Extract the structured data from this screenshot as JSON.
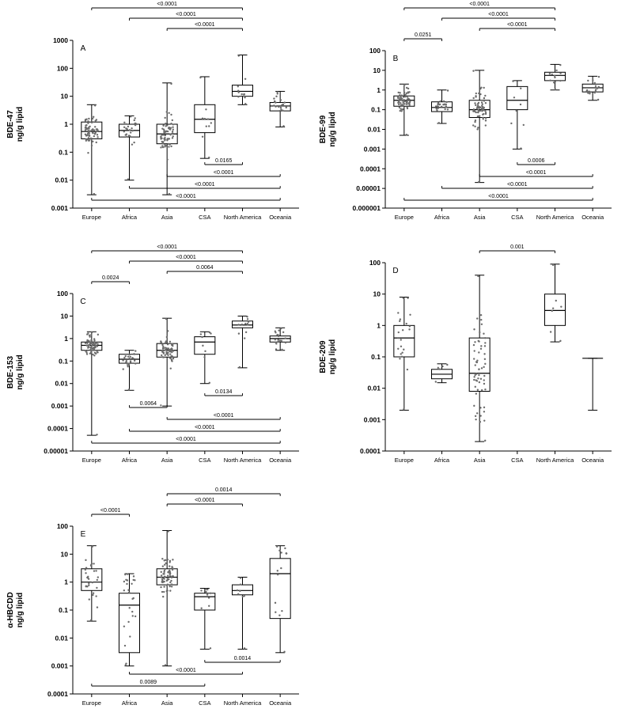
{
  "figure": {
    "background": "#ffffff",
    "line_color": "#000000",
    "point_color": "#6b6b6b"
  },
  "chart_data": [
    {
      "type": "box",
      "panel_label": "A",
      "ylabel_line1": "BDE-47",
      "ylabel_line2": "ng/g lipid",
      "log_range": [
        3,
        -3
      ],
      "yticks": [
        "1000",
        "100",
        "10",
        "1",
        "0.1",
        "0.01",
        "0.001"
      ],
      "categories": [
        "Europe",
        "Africa",
        "Asia",
        "CSA",
        "North America",
        "Oceania"
      ],
      "boxes": [
        {
          "min": 0.003,
          "q1": 0.3,
          "median": 0.55,
          "q3": 1.2,
          "max": 5,
          "n": 70
        },
        {
          "min": 0.01,
          "q1": 0.35,
          "median": 0.6,
          "q3": 1.0,
          "max": 2,
          "n": 25
        },
        {
          "min": 0.003,
          "q1": 0.2,
          "median": 0.45,
          "q3": 1.0,
          "max": 30,
          "n": 70
        },
        {
          "min": 0.06,
          "q1": 0.5,
          "median": 1.5,
          "q3": 5,
          "max": 50,
          "n": 10
        },
        {
          "min": 5,
          "q1": 10,
          "median": 15,
          "q3": 25,
          "max": 300,
          "n": 12
        },
        {
          "min": 0.8,
          "q1": 3,
          "median": 4.5,
          "q3": 6,
          "max": 15,
          "n": 20
        }
      ],
      "top_annotations": [
        {
          "label": "<0.0001",
          "from": 0,
          "to": 4
        },
        {
          "label": "<0.0001",
          "from": 1,
          "to": 4
        },
        {
          "label": "<0.0001",
          "from": 2,
          "to": 4
        }
      ],
      "bottom_annotations": [
        {
          "label": "<0.0001",
          "from": 0,
          "to": 5
        },
        {
          "label": "<0.0001",
          "from": 1,
          "to": 5
        },
        {
          "label": "<0.0001",
          "from": 2,
          "to": 5
        },
        {
          "label": "0.0165",
          "from": 3,
          "to": 4
        }
      ]
    },
    {
      "type": "box",
      "panel_label": "B",
      "ylabel_line1": "BDE-99",
      "ylabel_line2": "ng/g lipid",
      "log_range": [
        2,
        -6
      ],
      "yticks": [
        "100",
        "10",
        "1",
        "0.1",
        "0.01",
        "0.001",
        "0.0001",
        "0.00001",
        "0.000001"
      ],
      "categories": [
        "Europe",
        "Africa",
        "Asia",
        "CSA",
        "North America",
        "Oceania"
      ],
      "boxes": [
        {
          "min": 0.005,
          "q1": 0.15,
          "median": 0.3,
          "q3": 0.5,
          "max": 2,
          "n": 70
        },
        {
          "min": 0.02,
          "q1": 0.08,
          "median": 0.13,
          "q3": 0.25,
          "max": 1,
          "n": 25
        },
        {
          "min": 2e-05,
          "q1": 0.04,
          "median": 0.1,
          "q3": 0.3,
          "max": 10,
          "n": 70
        },
        {
          "min": 0.001,
          "q1": 0.1,
          "median": 0.3,
          "q3": 1.5,
          "max": 3,
          "n": 8
        },
        {
          "min": 1,
          "q1": 3,
          "median": 5.5,
          "q3": 8,
          "max": 20,
          "n": 12
        },
        {
          "min": 0.3,
          "q1": 0.8,
          "median": 1.3,
          "q3": 2,
          "max": 5,
          "n": 20
        }
      ],
      "top_annotations": [
        {
          "label": "<0.0001",
          "from": 0,
          "to": 4
        },
        {
          "label": "<0.0001",
          "from": 1,
          "to": 4
        },
        {
          "label": "<0.0001",
          "from": 2,
          "to": 4
        },
        {
          "label": "0.0251",
          "from": 0,
          "to": 1
        }
      ],
      "bottom_annotations": [
        {
          "label": "<0.0001",
          "from": 0,
          "to": 5
        },
        {
          "label": "<0.0001",
          "from": 1,
          "to": 5
        },
        {
          "label": "<0.0001",
          "from": 2,
          "to": 5
        },
        {
          "label": "0.0006",
          "from": 3,
          "to": 4
        }
      ]
    },
    {
      "type": "box",
      "panel_label": "C",
      "ylabel_line1": "BDE-153",
      "ylabel_line2": "ng/g lipid",
      "log_range": [
        2,
        -5
      ],
      "yticks": [
        "100",
        "10",
        "1",
        "0.1",
        "0.01",
        "0.001",
        "0.0001",
        "0.00001"
      ],
      "categories": [
        "Europe",
        "Africa",
        "Asia",
        "CSA",
        "North America",
        "Oceania"
      ],
      "boxes": [
        {
          "min": 5e-05,
          "q1": 0.3,
          "median": 0.5,
          "q3": 0.7,
          "max": 2,
          "n": 70
        },
        {
          "min": 0.005,
          "q1": 0.08,
          "median": 0.12,
          "q3": 0.2,
          "max": 0.3,
          "n": 25
        },
        {
          "min": 0.001,
          "q1": 0.15,
          "median": 0.3,
          "q3": 0.6,
          "max": 8,
          "n": 70
        },
        {
          "min": 0.01,
          "q1": 0.2,
          "median": 0.7,
          "q3": 1.2,
          "max": 2,
          "n": 8
        },
        {
          "min": 0.05,
          "q1": 3,
          "median": 4,
          "q3": 6,
          "max": 10,
          "n": 12
        },
        {
          "min": 0.3,
          "q1": 0.7,
          "median": 1.0,
          "q3": 1.3,
          "max": 3,
          "n": 20
        }
      ],
      "top_annotations": [
        {
          "label": "<0.0001",
          "from": 0,
          "to": 4
        },
        {
          "label": "<0.0001",
          "from": 1,
          "to": 4
        },
        {
          "label": "0.0064",
          "from": 2,
          "to": 4
        },
        {
          "label": "0.0024",
          "from": 0,
          "to": 1
        }
      ],
      "bottom_annotations": [
        {
          "label": "<0.0001",
          "from": 0,
          "to": 5
        },
        {
          "label": "<0.0001",
          "from": 1,
          "to": 5
        },
        {
          "label": "<0.0001",
          "from": 2,
          "to": 5
        },
        {
          "label": "0.0064",
          "from": 1,
          "to": 2
        },
        {
          "label": "0.0134",
          "from": 3,
          "to": 4
        }
      ]
    },
    {
      "type": "box",
      "panel_label": "D",
      "ylabel_line1": "BDE-209",
      "ylabel_line2": "ng/g lipid",
      "log_range": [
        2,
        -4
      ],
      "yticks": [
        "100",
        "10",
        "1",
        "0.1",
        "0.01",
        "0.001",
        "0.0001"
      ],
      "categories": [
        "Europe",
        "Africa",
        "Asia",
        "CSA",
        "North America",
        "Oceania"
      ],
      "boxes": [
        {
          "min": 0.002,
          "q1": 0.1,
          "median": 0.4,
          "q3": 1.0,
          "max": 8,
          "n": 22
        },
        {
          "min": 0.015,
          "q1": 0.02,
          "median": 0.028,
          "q3": 0.04,
          "max": 0.06,
          "n": 5
        },
        {
          "min": 0.0002,
          "q1": 0.008,
          "median": 0.03,
          "q3": 0.4,
          "max": 40,
          "n": 60
        },
        null,
        {
          "min": 0.3,
          "q1": 1,
          "median": 3,
          "q3": 10,
          "max": 90,
          "n": 7
        },
        {
          "min": 0.002,
          "q1": 0.09,
          "median": 0.09,
          "q3": 0.09,
          "max": 0.09,
          "n": 0
        }
      ],
      "top_annotations": [
        {
          "label": "0.001",
          "from": 2,
          "to": 4
        }
      ],
      "bottom_annotations": []
    },
    {
      "type": "box",
      "panel_label": "E",
      "ylabel_line1": "α-HBCDD",
      "ylabel_line2": "ng/g lipid",
      "log_range": [
        2,
        -4
      ],
      "yticks": [
        "100",
        "10",
        "1",
        "0.1",
        "0.01",
        "0.001",
        "0.0001"
      ],
      "categories": [
        "Europe",
        "Africa",
        "Asia",
        "CSA",
        "North America",
        "Oceania"
      ],
      "boxes": [
        {
          "min": 0.04,
          "q1": 0.5,
          "median": 1,
          "q3": 3,
          "max": 20,
          "n": 30
        },
        {
          "min": 0.001,
          "q1": 0.003,
          "median": 0.15,
          "q3": 0.4,
          "max": 2,
          "n": 25
        },
        {
          "min": 0.001,
          "q1": 0.8,
          "median": 1.5,
          "q3": 3,
          "max": 70,
          "n": 70
        },
        {
          "min": 0.004,
          "q1": 0.1,
          "median": 0.3,
          "q3": 0.4,
          "max": 0.6,
          "n": 10
        },
        {
          "min": 0.004,
          "q1": 0.35,
          "median": 0.5,
          "q3": 0.8,
          "max": 1.5,
          "n": 8
        },
        {
          "min": 0.003,
          "q1": 0.05,
          "median": 2,
          "q3": 7,
          "max": 20,
          "n": 15
        }
      ],
      "top_annotations": [
        {
          "label": "0.0014",
          "from": 2,
          "to": 5
        },
        {
          "label": "<0.0001",
          "from": 2,
          "to": 4
        },
        {
          "label": "<0.0001",
          "from": 0,
          "to": 1
        }
      ],
      "bottom_annotations": [
        {
          "label": "0.0089",
          "from": 0,
          "to": 3
        },
        {
          "label": "<0.0001",
          "from": 1,
          "to": 4
        },
        {
          "label": "0.0014",
          "from": 3,
          "to": 5
        }
      ]
    }
  ]
}
